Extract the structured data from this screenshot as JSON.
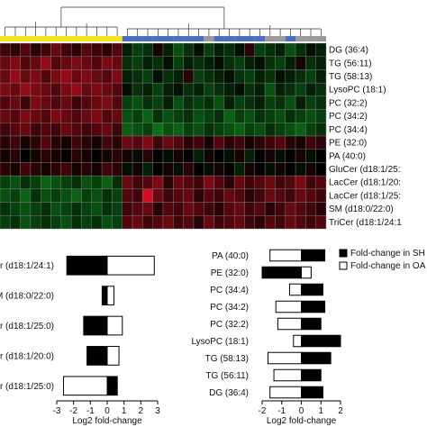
{
  "chart_data": [
    {
      "type": "heatmap",
      "rows": [
        "DG (36:4)",
        "TG (56:11)",
        "TG (58:13)",
        "LysoPC (18:1)",
        "PC (32:2)",
        "PC (34:2)",
        "PC (34:4)",
        "PE (32:0)",
        "PA (40:0)",
        "GluCer (d18:1/25:",
        "LacCer (d18:1/20:",
        "LacCer (d18:1/25:",
        "SM (d18:0/22:0)",
        "TriCer (d18:1/24:1"
      ],
      "group_bar": [
        "yellow",
        "yellow",
        "yellow",
        "yellow",
        "yellow",
        "yellow",
        "yellow",
        "yellow",
        "yellow",
        "yellow",
        "yellow",
        "yellow",
        "blue",
        "blue",
        "blue",
        "blue",
        "blue",
        "blue",
        "blue",
        "blue",
        "gray",
        "blue",
        "blue",
        "blue",
        "blue",
        "blue",
        "gray",
        "gray",
        "blue",
        "gray",
        "gray",
        "gray"
      ],
      "values": [
        [
          0.3,
          0.2,
          0.4,
          0.2,
          0.3,
          0.5,
          0.3,
          0.2,
          0.4,
          0.3,
          0.2,
          0.4,
          -0.2,
          -0.4,
          -0.3,
          0.1,
          -0.2,
          -0.5,
          -0.3,
          -0.1,
          -0.4,
          -0.2,
          -0.3,
          -0.1,
          0.2,
          -0.4,
          -0.3,
          -0.2,
          -0.5,
          -0.3,
          -0.1,
          -0.2
        ],
        [
          0.5,
          0.6,
          0.4,
          0.5,
          0.7,
          0.4,
          0.5,
          0.6,
          0.5,
          0.4,
          0.6,
          0.5,
          -0.3,
          -0.4,
          -0.2,
          -0.3,
          -0.1,
          -0.4,
          -0.2,
          -0.3,
          -0.2,
          -0.1,
          -0.3,
          -0.4,
          -0.2,
          -0.1,
          -0.3,
          -0.4,
          -0.2,
          0.1,
          -0.3,
          -0.2
        ],
        [
          0.5,
          0.7,
          0.5,
          0.6,
          0.4,
          0.6,
          0.7,
          0.5,
          0.6,
          0.5,
          0.4,
          0.6,
          -0.2,
          -0.3,
          -0.4,
          -0.1,
          -0.3,
          -0.2,
          0.2,
          -0.4,
          -0.3,
          -0.2,
          -0.1,
          -0.3,
          -0.4,
          -0.2,
          -0.3,
          -0.1,
          -0.2,
          -0.3,
          -0.4,
          -0.2
        ],
        [
          0.6,
          0.5,
          0.7,
          0.6,
          0.5,
          0.4,
          0.6,
          0.7,
          0.5,
          0.6,
          0.5,
          0.4,
          -0.1,
          -0.3,
          -0.2,
          -0.4,
          -0.2,
          -0.1,
          -0.3,
          -0.2,
          -0.4,
          -0.3,
          -0.2,
          -0.1,
          -0.3,
          -0.2,
          -0.5,
          -0.2,
          -0.3,
          -0.4,
          -0.2,
          -0.3
        ],
        [
          0.4,
          0.5,
          0.3,
          0.6,
          0.5,
          0.4,
          0.5,
          0.3,
          0.4,
          0.5,
          0.6,
          0.4,
          -0.4,
          -0.5,
          -0.3,
          -0.4,
          -0.2,
          -0.5,
          -0.3,
          -0.4,
          -0.3,
          -0.5,
          -0.2,
          -0.4,
          -0.3,
          -0.2,
          -0.4,
          -0.3,
          -0.5,
          -0.2,
          -0.4,
          -0.3
        ],
        [
          0.5,
          0.4,
          0.6,
          0.5,
          0.4,
          0.6,
          0.5,
          0.4,
          0.5,
          0.6,
          0.4,
          0.5,
          -0.5,
          -0.4,
          -0.6,
          -0.3,
          -0.5,
          -0.4,
          -0.3,
          -0.5,
          -0.4,
          -0.3,
          -0.6,
          -0.4,
          -0.5,
          -0.3,
          -0.4,
          -0.5,
          -0.3,
          -0.4,
          -0.5,
          -0.4
        ],
        [
          0.3,
          0.4,
          0.5,
          0.3,
          0.4,
          0.3,
          0.5,
          0.4,
          0.3,
          0.4,
          0.5,
          0.3,
          -0.6,
          -0.5,
          -0.4,
          -0.7,
          -0.5,
          -0.6,
          -0.4,
          -0.5,
          -0.3,
          -0.4,
          -0.5,
          -0.6,
          -0.4,
          -0.5,
          -0.3,
          -0.4,
          -0.5,
          -0.6,
          -0.4,
          -0.3
        ],
        [
          0.2,
          0.3,
          0.1,
          0.2,
          0.4,
          0.2,
          0.1,
          0.3,
          0.2,
          0.1,
          0.3,
          0.2,
          0.5,
          0.4,
          0.6,
          0.3,
          0.5,
          0.4,
          0.2,
          0.3,
          0.1,
          0.4,
          0.2,
          0.3,
          0.1,
          0.2,
          0.3,
          0.4,
          0.2,
          0.1,
          0.3,
          0.2
        ],
        [
          0.1,
          0.2,
          0.0,
          0.1,
          0.2,
          0.1,
          0.0,
          0.2,
          0.1,
          0.0,
          0.1,
          0.2,
          0.1,
          -0.1,
          0.2,
          0.0,
          -0.1,
          0.1,
          0.0,
          -0.2,
          0.1,
          0.0,
          -0.1,
          0.1,
          -0.2,
          0.0,
          0.1,
          -0.1,
          0.0,
          0.1,
          -0.1,
          0.0
        ],
        [
          0.2,
          0.1,
          0.3,
          0.2,
          0.1,
          0.2,
          0.3,
          0.1,
          0.2,
          0.1,
          0.3,
          0.2,
          -0.1,
          0.1,
          -0.2,
          0.0,
          0.1,
          -0.1,
          0.2,
          0.0,
          -0.1,
          0.1,
          0.0,
          -0.2,
          0.1,
          0.0,
          -0.1,
          0.1,
          0.0,
          -0.1,
          0.1,
          0.0
        ],
        [
          -0.4,
          -0.5,
          -0.3,
          -0.4,
          -0.6,
          -0.5,
          -0.4,
          -0.3,
          -0.5,
          -0.4,
          -0.6,
          -0.3,
          0.5,
          0.3,
          0.4,
          0.6,
          0.2,
          0.5,
          0.4,
          0.3,
          0.6,
          0.4,
          0.2,
          0.5,
          0.3,
          0.4,
          0.5,
          0.3,
          0.4,
          0.6,
          0.3,
          0.4
        ],
        [
          -0.5,
          -0.4,
          -0.6,
          -0.3,
          -0.5,
          -0.4,
          -0.5,
          -0.6,
          -0.4,
          -0.5,
          -0.3,
          -0.4,
          0.4,
          0.3,
          1.0,
          0.5,
          0.3,
          0.4,
          0.5,
          0.2,
          0.4,
          0.3,
          0.5,
          0.4,
          0.2,
          0.3,
          0.5,
          0.4,
          0.3,
          0.5,
          0.4,
          0.3
        ],
        [
          -0.3,
          -0.4,
          -0.5,
          -0.4,
          -0.3,
          -0.5,
          -0.4,
          -0.3,
          -0.4,
          -0.5,
          -0.3,
          -0.4,
          0.3,
          0.4,
          0.5,
          0.2,
          0.4,
          0.3,
          0.5,
          0.4,
          0.3,
          0.2,
          0.4,
          0.5,
          0.3,
          0.4,
          0.2,
          0.3,
          0.5,
          0.4,
          0.3,
          0.2
        ],
        [
          -0.4,
          -0.3,
          -0.5,
          -0.4,
          -0.3,
          -0.4,
          -0.5,
          -0.3,
          -0.4,
          -0.3,
          -0.5,
          -0.4,
          0.4,
          0.5,
          0.3,
          0.4,
          0.5,
          0.3,
          0.4,
          0.2,
          0.5,
          0.3,
          0.4,
          0.5,
          0.3,
          0.2,
          0.4,
          0.3,
          0.5,
          0.4,
          0.3,
          0.4
        ]
      ],
      "colors": {
        "high": "#d01020",
        "low": "#10a020",
        "mid": "#000000",
        "grid": "#808080",
        "yellow": "#f6e21a",
        "blue": "#4a6fc0",
        "gray": "#9a9a9a"
      }
    },
    {
      "type": "bar",
      "orientation": "horizontal",
      "categories": [
        "er (d18:1/24:1)",
        "M (d18:0/22:0)",
        "er (d18:1/25:0)",
        "er (d18:1/20:0)",
        "er (d18:1/25:0)"
      ],
      "series": [
        {
          "values": [
            -2.4,
            -0.3,
            -1.4,
            -1.2,
            0.6
          ],
          "color": "#000000"
        },
        {
          "values": [
            2.8,
            0.4,
            0.9,
            0.7,
            -2.6
          ],
          "color": "#ffffff"
        }
      ],
      "xlabel": "Log2 fold-change",
      "xticks": [
        -3,
        -2,
        -1,
        0,
        1,
        2,
        3
      ],
      "xlim": [
        -3,
        3
      ]
    },
    {
      "type": "bar",
      "orientation": "horizontal",
      "categories": [
        "PA (40:0)",
        "PE (32:0)",
        "PC (34:4)",
        "PC (34:2)",
        "PC (32:2)",
        "LysoPC (18:1)",
        "TG (58:13)",
        "TG (56:11)",
        "DG (36:4)"
      ],
      "series": [
        {
          "name": "Fold-change in SH",
          "values": [
            1.2,
            -2.0,
            1.1,
            1.2,
            1.0,
            2.0,
            1.5,
            1.0,
            1.1
          ],
          "color": "#000000"
        },
        {
          "name": "Fold-change in OA",
          "values": [
            -1.6,
            0.5,
            -0.6,
            -1.3,
            -1.2,
            -0.4,
            -1.7,
            -1.4,
            -1.6
          ],
          "color": "#ffffff"
        }
      ],
      "legend": "top-right",
      "xlabel": "Log2 fold-change",
      "xticks": [
        -2,
        -1,
        0,
        1,
        2
      ],
      "xlim": [
        -2,
        2
      ]
    }
  ]
}
